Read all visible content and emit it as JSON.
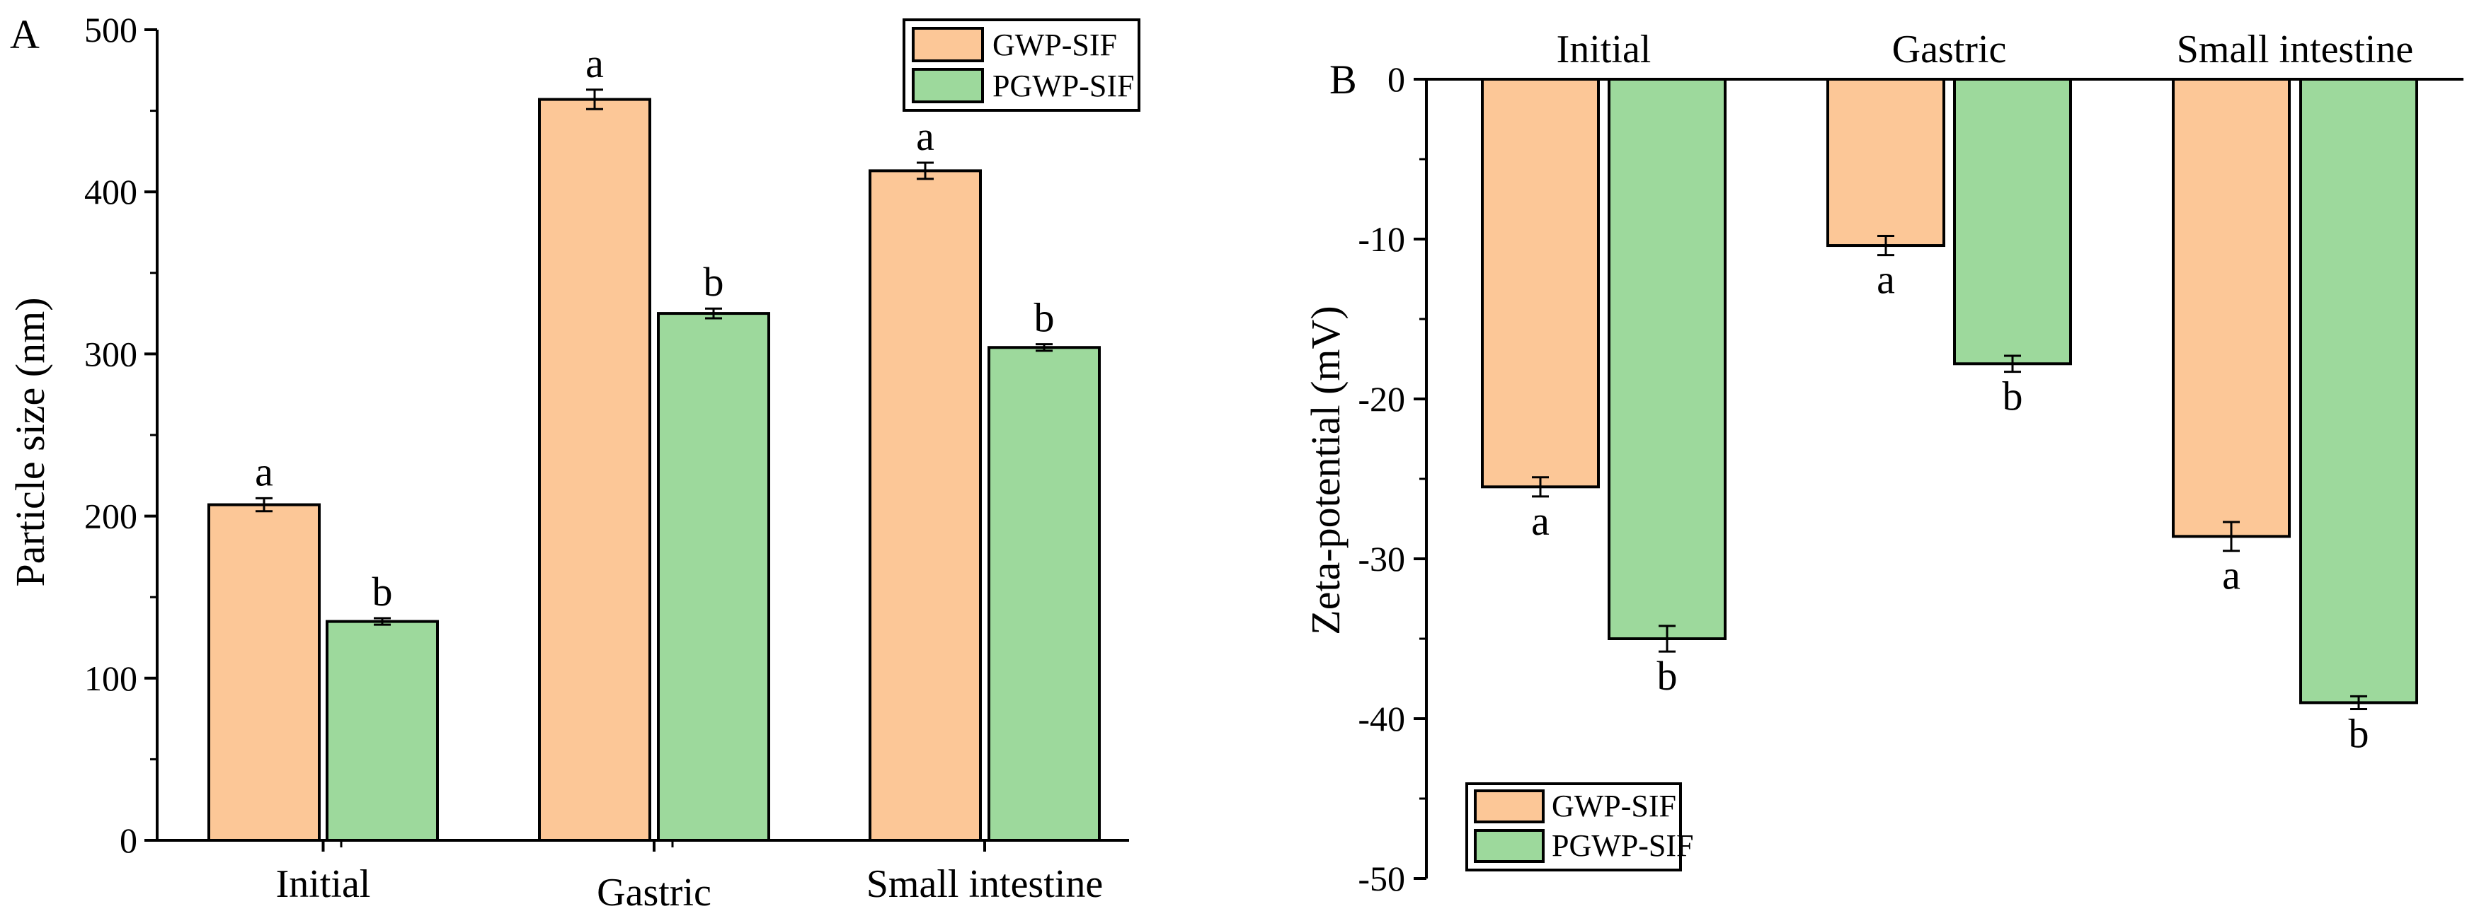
{
  "colors": {
    "gwp": "#fcc797",
    "pgwp": "#9dd99c"
  },
  "chart_data": [
    {
      "panel": "A",
      "type": "bar",
      "categories": [
        "Initial",
        "Gastric",
        "Small intestine"
      ],
      "ylabel": "Particle size (nm)",
      "ylim": [
        0,
        500
      ],
      "yticks": [
        "0",
        "100",
        "200",
        "300",
        "400",
        "500"
      ],
      "legend_position": "top-right",
      "series": [
        {
          "name": "GWP-SIF",
          "values": [
            207,
            457,
            413
          ],
          "errors": [
            4,
            6,
            5
          ],
          "letters": [
            "a",
            "a",
            "a"
          ]
        },
        {
          "name": "PGWP-SIF",
          "values": [
            135,
            325,
            304
          ],
          "errors": [
            2,
            3,
            2
          ],
          "letters": [
            "b",
            "b",
            "b"
          ]
        }
      ]
    },
    {
      "panel": "B",
      "type": "bar",
      "categories": [
        "Initial",
        "Gastric",
        "Small intestine"
      ],
      "ylabel": "Zeta-potential (mV)",
      "ylim": [
        -50,
        0
      ],
      "yticks": [
        "0",
        "-10",
        "-20",
        "-30",
        "-40",
        "-50"
      ],
      "legend_position": "bottom-left",
      "series": [
        {
          "name": "GWP-SIF",
          "values": [
            -25.5,
            -10.4,
            -28.6
          ],
          "errors": [
            0.6,
            0.6,
            0.9
          ],
          "letters": [
            "a",
            "a",
            "a"
          ]
        },
        {
          "name": "PGWP-SIF",
          "values": [
            -35.0,
            -17.8,
            -39.0
          ],
          "errors": [
            0.8,
            0.5,
            0.4
          ],
          "letters": [
            "b",
            "b",
            "b"
          ]
        }
      ]
    }
  ]
}
